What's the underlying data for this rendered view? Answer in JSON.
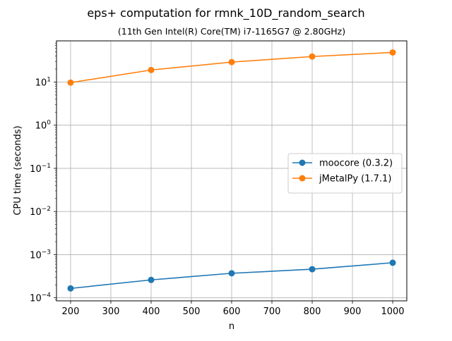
{
  "chart_data": {
    "type": "line",
    "title": "eps+ computation for rmnk_10D_random_search",
    "subtitle": "(11th Gen Intel(R) Core(TM) i7-1165G7 @ 2.80GHz)",
    "xlabel": "n",
    "ylabel": "CPU time (seconds)",
    "yscale": "log",
    "xlim": [
      165,
      1035
    ],
    "ylim": [
      8.5e-05,
      90
    ],
    "grid": true,
    "legend_position": "center-right",
    "x": [
      200,
      400,
      600,
      800,
      1000
    ],
    "x_ticks": [
      200,
      300,
      400,
      500,
      600,
      700,
      800,
      900,
      1000
    ],
    "y_ticks": [
      {
        "value": 0.0001,
        "base": "10",
        "exp": "−4"
      },
      {
        "value": 0.001,
        "base": "10",
        "exp": "−3"
      },
      {
        "value": 0.01,
        "base": "10",
        "exp": "−2"
      },
      {
        "value": 0.1,
        "base": "10",
        "exp": "−1"
      },
      {
        "value": 1,
        "base": "10",
        "exp": "0"
      },
      {
        "value": 10,
        "base": "10",
        "exp": "1"
      }
    ],
    "series": [
      {
        "name": "moocore (0.3.2)",
        "color": "#1f77b4",
        "values": [
          0.000165,
          0.00026,
          0.00037,
          0.00046,
          0.00065
        ]
      },
      {
        "name": "jMetalPy (1.7.1)",
        "color": "#ff7f0e",
        "values": [
          9.7,
          19.0,
          29.0,
          39.0,
          48.5
        ]
      }
    ]
  }
}
